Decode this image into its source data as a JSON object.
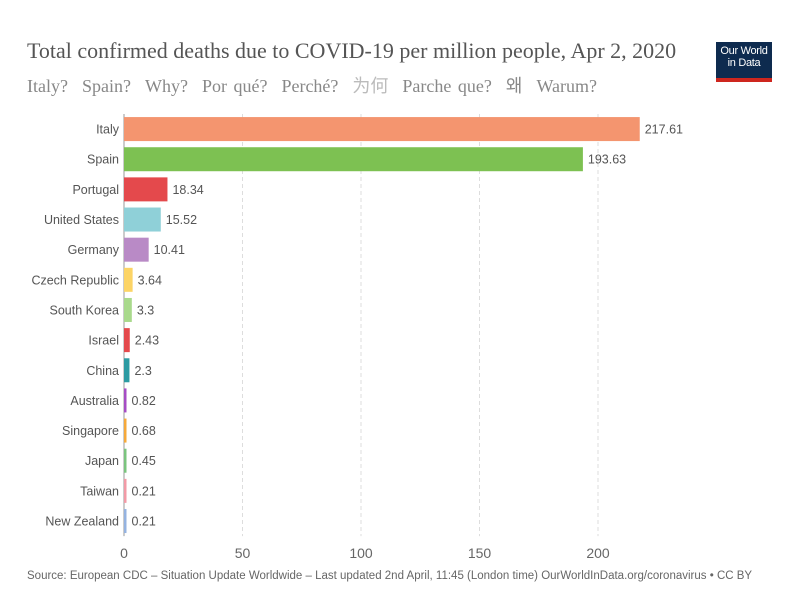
{
  "header": {
    "title": "Total confirmed deaths due to COVID-19 per million people, Apr 2, 2020",
    "subtitle_links": [
      "Italy?",
      "Spain?",
      "Why?",
      "Por qué?",
      "Perché?",
      "为何",
      "Parche que?",
      "왜",
      "Warum?"
    ],
    "logo_line1": "Our World",
    "logo_line2": "in Data"
  },
  "footer": {
    "source": "Source: European CDC – Situation Update Worldwide – Last updated 2nd April, 11:45 (London time) OurWorldInData.org/coronavirus • CC BY"
  },
  "chart_data": {
    "type": "bar",
    "orientation": "horizontal",
    "title": "Total confirmed deaths due to COVID-19 per million people, Apr 2, 2020",
    "xlabel": "",
    "ylabel": "",
    "xlim": [
      0,
      220
    ],
    "xticks": [
      0,
      50,
      100,
      150,
      200
    ],
    "grid": true,
    "categories": [
      "Italy",
      "Spain",
      "Portugal",
      "United States",
      "Germany",
      "Czech Republic",
      "South Korea",
      "Israel",
      "China",
      "Australia",
      "Singapore",
      "Japan",
      "Taiwan",
      "New Zealand"
    ],
    "values": [
      217.61,
      193.63,
      18.34,
      15.52,
      10.41,
      3.64,
      3.3,
      2.43,
      2.3,
      0.82,
      0.68,
      0.45,
      0.21,
      0.21
    ],
    "value_labels": [
      "217.61",
      "193.63",
      "18.34",
      "15.52",
      "10.41",
      "3.64",
      "3.3",
      "2.43",
      "2.3",
      "0.82",
      "0.68",
      "0.45",
      "0.21",
      "0.21"
    ],
    "colors": [
      "#f4956f",
      "#7dc152",
      "#e4494c",
      "#8fd0d8",
      "#b98ac6",
      "#fcd466",
      "#a9d98c",
      "#e4494c",
      "#2c9ba2",
      "#a64dc4",
      "#f6a93a",
      "#7bc47e",
      "#f29aa6",
      "#95b3e0"
    ]
  }
}
